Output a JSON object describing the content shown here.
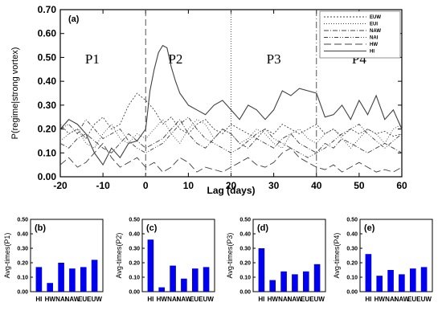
{
  "chart_data": [
    {
      "panel": "(a)",
      "type": "line",
      "xlabel": "Lag (days)",
      "ylabel": "P(regime|strong vortex)",
      "xlim": [
        -20,
        60
      ],
      "ylim": [
        0,
        0.7
      ],
      "xticks": [
        "-20",
        "-10",
        "0",
        "10",
        "20",
        "30",
        "40",
        "50",
        "60"
      ],
      "yticks": [
        "0.00",
        "0.10",
        "0.20",
        "0.30",
        "0.40",
        "0.50",
        "0.60",
        "0.70"
      ],
      "periods": [
        {
          "label": "P1",
          "x": -12.5,
          "y": 0.475
        },
        {
          "label": "P2",
          "x": 7,
          "y": 0.475
        },
        {
          "label": "P3",
          "x": 30,
          "y": 0.475
        },
        {
          "label": "P4",
          "x": 50,
          "y": 0.475
        }
      ],
      "dividers": [
        0,
        20,
        40
      ],
      "legend_position": "top-right",
      "series": [
        {
          "name": "EUW",
          "dash": "2,2",
          "x": [
            -20,
            -18,
            -16,
            -14,
            -12,
            -10,
            -8,
            -6,
            -4,
            -2,
            0,
            2,
            4,
            6,
            8,
            10,
            12,
            14,
            16,
            18,
            20,
            22,
            24,
            26,
            28,
            30,
            32,
            34,
            36,
            38,
            40,
            42,
            44,
            46,
            48,
            50,
            52,
            54,
            56,
            58,
            60
          ],
          "y": [
            0.22,
            0.18,
            0.2,
            0.16,
            0.22,
            0.25,
            0.2,
            0.22,
            0.3,
            0.35,
            0.32,
            0.28,
            0.22,
            0.25,
            0.2,
            0.18,
            0.22,
            0.24,
            0.2,
            0.18,
            0.22,
            0.2,
            0.18,
            0.16,
            0.2,
            0.18,
            0.22,
            0.2,
            0.18,
            0.2,
            0.22,
            0.18,
            0.2,
            0.17,
            0.2,
            0.18,
            0.2,
            0.18,
            0.19,
            0.17,
            0.18
          ]
        },
        {
          "name": "EUI",
          "dash": "1,2",
          "x": [
            -20,
            -18,
            -16,
            -14,
            -12,
            -10,
            -8,
            -6,
            -4,
            -2,
            0,
            2,
            4,
            6,
            8,
            10,
            12,
            14,
            16,
            18,
            20,
            22,
            24,
            26,
            28,
            30,
            32,
            34,
            36,
            38,
            40,
            42,
            44,
            46,
            48,
            50,
            52,
            54,
            56,
            58,
            60
          ],
          "y": [
            0.15,
            0.18,
            0.2,
            0.14,
            0.12,
            0.18,
            0.22,
            0.16,
            0.14,
            0.18,
            0.16,
            0.2,
            0.24,
            0.18,
            0.14,
            0.2,
            0.24,
            0.22,
            0.16,
            0.2,
            0.18,
            0.14,
            0.16,
            0.2,
            0.18,
            0.14,
            0.12,
            0.18,
            0.2,
            0.16,
            0.14,
            0.18,
            0.2,
            0.16,
            0.12,
            0.16,
            0.2,
            0.18,
            0.14,
            0.2,
            0.22
          ]
        },
        {
          "name": "NAW",
          "dash": "6,2,1,2",
          "x": [
            -20,
            -18,
            -16,
            -14,
            -12,
            -10,
            -8,
            -6,
            -4,
            -2,
            0,
            2,
            4,
            6,
            8,
            10,
            12,
            14,
            16,
            18,
            20,
            22,
            24,
            26,
            28,
            30,
            32,
            34,
            36,
            38,
            40,
            42,
            44,
            46,
            48,
            50,
            52,
            54,
            56,
            58,
            60
          ],
          "y": [
            0.14,
            0.12,
            0.16,
            0.18,
            0.15,
            0.12,
            0.1,
            0.14,
            0.18,
            0.15,
            0.12,
            0.14,
            0.16,
            0.2,
            0.24,
            0.18,
            0.14,
            0.12,
            0.16,
            0.2,
            0.18,
            0.14,
            0.12,
            0.16,
            0.14,
            0.12,
            0.16,
            0.18,
            0.14,
            0.12,
            0.1,
            0.14,
            0.12,
            0.16,
            0.14,
            0.12,
            0.1,
            0.12,
            0.14,
            0.12,
            0.1
          ]
        },
        {
          "name": "NAI",
          "dash": "5,2,1,2,1,2",
          "x": [
            -20,
            -18,
            -16,
            -14,
            -12,
            -10,
            -8,
            -6,
            -4,
            -2,
            0,
            2,
            4,
            6,
            8,
            10,
            12,
            14,
            16,
            18,
            20,
            22,
            24,
            26,
            28,
            30,
            32,
            34,
            36,
            38,
            40,
            42,
            44,
            46,
            48,
            50,
            52,
            54,
            56,
            58,
            60
          ],
          "y": [
            0.2,
            0.22,
            0.18,
            0.24,
            0.2,
            0.16,
            0.18,
            0.2,
            0.15,
            0.12,
            0.1,
            0.12,
            0.14,
            0.18,
            0.22,
            0.25,
            0.2,
            0.16,
            0.14,
            0.12,
            0.1,
            0.12,
            0.15,
            0.18,
            0.2,
            0.16,
            0.14,
            0.12,
            0.1,
            0.08,
            0.1,
            0.12,
            0.15,
            0.18,
            0.2,
            0.22,
            0.18,
            0.15,
            0.12,
            0.15,
            0.18
          ]
        },
        {
          "name": "HW",
          "dash": "9,4",
          "x": [
            -20,
            -18,
            -16,
            -14,
            -12,
            -10,
            -8,
            -6,
            -4,
            -2,
            0,
            2,
            4,
            6,
            8,
            10,
            12,
            14,
            16,
            18,
            20,
            22,
            24,
            26,
            28,
            30,
            32,
            34,
            36,
            38,
            40,
            42,
            44,
            46,
            48,
            50,
            52,
            54,
            56,
            58,
            60
          ],
          "y": [
            0.05,
            0.08,
            0.04,
            0.06,
            0.1,
            0.14,
            0.08,
            0.04,
            0.06,
            0.08,
            0.04,
            0.06,
            0.02,
            0.04,
            0.08,
            0.06,
            0.02,
            0.04,
            0.03,
            0.02,
            0.04,
            0.06,
            0.08,
            0.05,
            0.04,
            0.06,
            0.1,
            0.12,
            0.08,
            0.06,
            0.04,
            0.03,
            0.05,
            0.02,
            0.04,
            0.06,
            0.04,
            0.02,
            0.03,
            0.02,
            0.04
          ]
        },
        {
          "name": "HI",
          "dash": "",
          "x": [
            -20,
            -18,
            -16,
            -14,
            -12,
            -10,
            -8,
            -6,
            -4,
            -2,
            0,
            1,
            2,
            3,
            4,
            5,
            6,
            7,
            8,
            10,
            12,
            14,
            16,
            18,
            20,
            22,
            24,
            26,
            28,
            30,
            32,
            34,
            36,
            38,
            40,
            42,
            44,
            46,
            48,
            50,
            52,
            54,
            56,
            58,
            60
          ],
          "y": [
            0.2,
            0.24,
            0.22,
            0.18,
            0.1,
            0.05,
            0.12,
            0.08,
            0.14,
            0.15,
            0.2,
            0.36,
            0.45,
            0.52,
            0.55,
            0.54,
            0.46,
            0.4,
            0.35,
            0.3,
            0.28,
            0.26,
            0.3,
            0.32,
            0.28,
            0.24,
            0.3,
            0.28,
            0.24,
            0.28,
            0.36,
            0.34,
            0.37,
            0.36,
            0.35,
            0.25,
            0.26,
            0.3,
            0.24,
            0.32,
            0.26,
            0.34,
            0.24,
            0.28,
            0.2
          ]
        }
      ]
    },
    {
      "panel": "(b)",
      "type": "bar",
      "ylabel": "Avg-times(P1)",
      "categories": [
        "HI",
        "HW",
        "NAI",
        "NAW",
        "EUI",
        "EUW"
      ],
      "values": [
        0.17,
        0.06,
        0.2,
        0.16,
        0.17,
        0.22
      ],
      "ylim": [
        0,
        0.5
      ],
      "yticks": [
        "0.00",
        "0.10",
        "0.20",
        "0.30",
        "0.40",
        "0.50"
      ]
    },
    {
      "panel": "(c)",
      "type": "bar",
      "ylabel": "Avg-times(P2)",
      "categories": [
        "HI",
        "HW",
        "NAI",
        "NAW",
        "EUI",
        "EUW"
      ],
      "values": [
        0.36,
        0.03,
        0.18,
        0.09,
        0.16,
        0.17
      ],
      "ylim": [
        0,
        0.5
      ],
      "yticks": [
        "0.00",
        "0.10",
        "0.20",
        "0.30",
        "0.40",
        "0.50"
      ]
    },
    {
      "panel": "(d)",
      "type": "bar",
      "ylabel": "Avg-times(P3)",
      "categories": [
        "HI",
        "HW",
        "NAI",
        "NAW",
        "EUI",
        "EUW"
      ],
      "values": [
        0.3,
        0.08,
        0.14,
        0.12,
        0.14,
        0.19
      ],
      "ylim": [
        0,
        0.5
      ],
      "yticks": [
        "0.00",
        "0.10",
        "0.20",
        "0.30",
        "0.40",
        "0.50"
      ]
    },
    {
      "panel": "(e)",
      "type": "bar",
      "ylabel": "Avg-times(P4)",
      "categories": [
        "HI",
        "HW",
        "NAI",
        "NAW",
        "EUI",
        "EUW"
      ],
      "values": [
        0.26,
        0.11,
        0.15,
        0.12,
        0.16,
        0.17
      ],
      "ylim": [
        0,
        0.5
      ],
      "yticks": [
        "0.00",
        "0.10",
        "0.20",
        "0.30",
        "0.40",
        "0.50"
      ]
    }
  ],
  "colors": {
    "bar": "#0000ee",
    "line": "#404040",
    "axis": "#000000"
  }
}
